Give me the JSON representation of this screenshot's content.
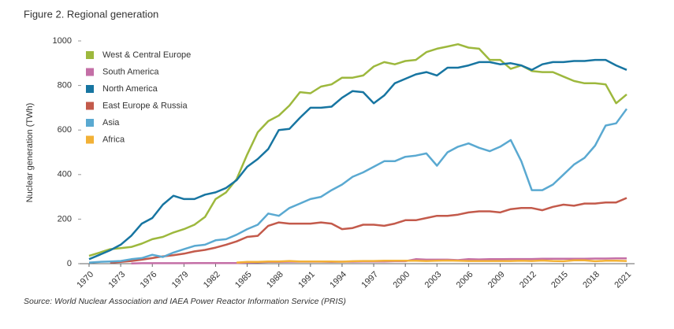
{
  "chart_data": {
    "type": "line",
    "title": "Figure 2. Regional generation",
    "ylabel": "Nuclear generation (TWh)",
    "source": "Source: World Nuclear Association and IAEA Power Reactor Information Service (PRIS)",
    "x": [
      1970,
      1971,
      1972,
      1973,
      1974,
      1975,
      1976,
      1977,
      1978,
      1979,
      1980,
      1981,
      1982,
      1983,
      1984,
      1985,
      1986,
      1987,
      1988,
      1989,
      1990,
      1991,
      1992,
      1993,
      1994,
      1995,
      1996,
      1997,
      1998,
      1999,
      2000,
      2001,
      2002,
      2003,
      2004,
      2005,
      2006,
      2007,
      2008,
      2009,
      2010,
      2011,
      2012,
      2013,
      2014,
      2015,
      2016,
      2017,
      2018,
      2019,
      2020,
      2021
    ],
    "xlim": [
      1970,
      2021
    ],
    "xticks": [
      1970,
      1973,
      1976,
      1979,
      1982,
      1985,
      1988,
      1991,
      1994,
      1997,
      2000,
      2003,
      2006,
      2009,
      2012,
      2015,
      2018,
      2021
    ],
    "ylim": [
      0,
      1000
    ],
    "yticks": [
      0,
      200,
      400,
      600,
      800,
      1000
    ],
    "grid": false,
    "legend": "upper left",
    "series": [
      {
        "name": "West & Central Europe",
        "color": "#9db83d",
        "values": [
          35,
          50,
          65,
          70,
          75,
          90,
          110,
          120,
          140,
          155,
          175,
          210,
          290,
          320,
          380,
          490,
          590,
          640,
          665,
          710,
          770,
          765,
          795,
          805,
          835,
          835,
          845,
          885,
          905,
          895,
          910,
          915,
          950,
          965,
          975,
          985,
          970,
          965,
          915,
          915,
          875,
          890,
          865,
          860,
          860,
          840,
          820,
          810,
          810,
          805,
          720,
          760
        ]
      },
      {
        "name": "South America",
        "color": "#c46fa6",
        "values": [
          null,
          null,
          null,
          null,
          1,
          2,
          2,
          2,
          2,
          2,
          3,
          3,
          3,
          3,
          3,
          5,
          6,
          8,
          8,
          9,
          9,
          9,
          9,
          8,
          9,
          9,
          10,
          10,
          10,
          11,
          11,
          20,
          18,
          18,
          18,
          16,
          20,
          19,
          20,
          20,
          21,
          21,
          21,
          22,
          22,
          22,
          22,
          22,
          23,
          23,
          24,
          24
        ]
      },
      {
        "name": "North America",
        "color": "#1775a1",
        "values": [
          20,
          40,
          60,
          85,
          125,
          180,
          205,
          265,
          305,
          290,
          290,
          310,
          320,
          340,
          375,
          435,
          470,
          515,
          600,
          605,
          655,
          700,
          700,
          705,
          745,
          775,
          770,
          720,
          755,
          810,
          830,
          850,
          860,
          845,
          880,
          880,
          890,
          905,
          905,
          895,
          900,
          890,
          870,
          895,
          905,
          905,
          910,
          910,
          915,
          915,
          890,
          870
        ]
      },
      {
        "name": "East Europe & Russia",
        "color": "#c35a4b",
        "values": [
          null,
          null,
          5,
          8,
          12,
          18,
          25,
          33,
          38,
          45,
          55,
          62,
          72,
          85,
          100,
          120,
          125,
          170,
          185,
          180,
          180,
          180,
          185,
          180,
          155,
          160,
          175,
          175,
          170,
          180,
          195,
          195,
          205,
          215,
          215,
          220,
          230,
          235,
          235,
          230,
          245,
          250,
          250,
          240,
          255,
          265,
          260,
          270,
          270,
          275,
          275,
          295
        ]
      },
      {
        "name": "Asia",
        "color": "#5aa9d1",
        "values": [
          5,
          8,
          10,
          12,
          20,
          25,
          40,
          30,
          50,
          65,
          80,
          85,
          105,
          110,
          130,
          155,
          175,
          225,
          215,
          250,
          270,
          290,
          300,
          330,
          355,
          390,
          410,
          435,
          460,
          460,
          480,
          485,
          495,
          440,
          500,
          525,
          540,
          520,
          505,
          525,
          555,
          460,
          330,
          330,
          355,
          400,
          445,
          475,
          530,
          620,
          630,
          695
        ]
      },
      {
        "name": "Africa",
        "color": "#f2b136",
        "values": [
          null,
          null,
          null,
          null,
          null,
          null,
          null,
          null,
          null,
          null,
          null,
          null,
          null,
          null,
          5,
          8,
          8,
          10,
          10,
          12,
          10,
          10,
          10,
          10,
          9,
          11,
          12,
          12,
          13,
          13,
          13,
          13,
          12,
          13,
          14,
          13,
          12,
          12,
          12,
          12,
          12,
          13,
          12,
          14,
          12,
          11,
          15,
          15,
          11,
          13,
          13,
          12
        ]
      }
    ]
  }
}
